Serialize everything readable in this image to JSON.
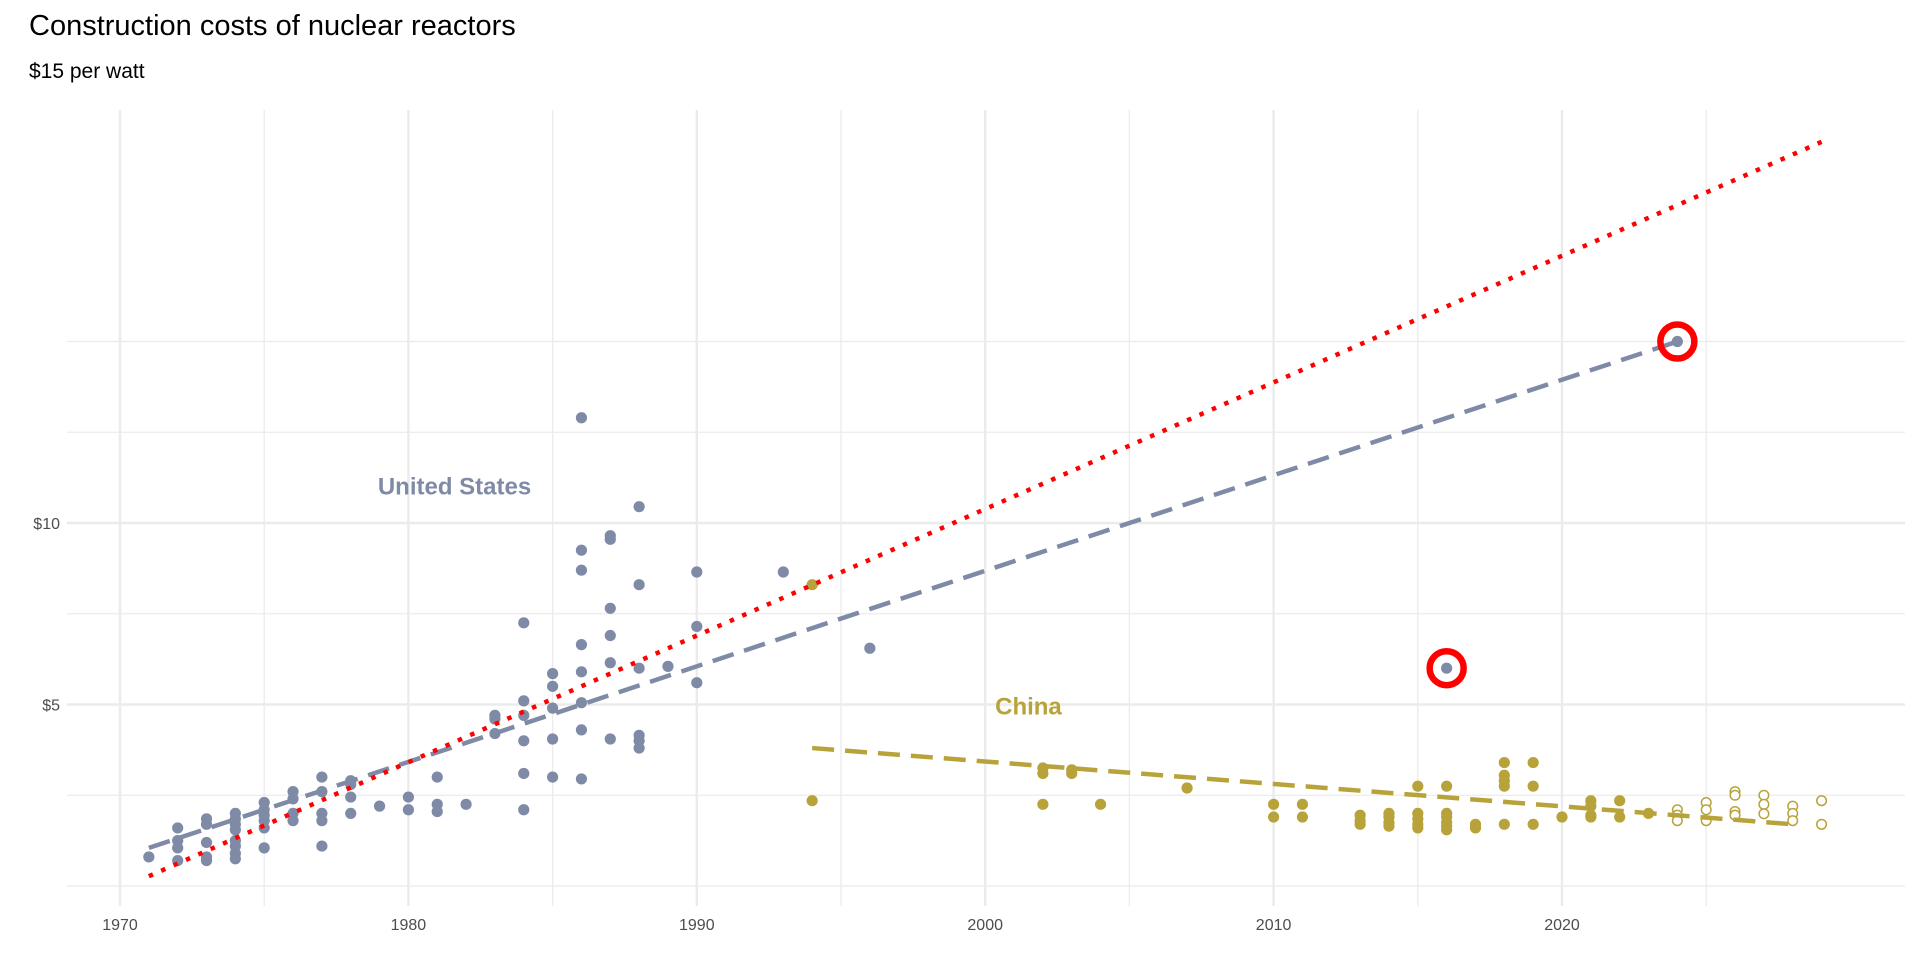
{
  "chart_data": {
    "type": "scatter",
    "title": "Construction costs of nuclear reactors",
    "subtitle": "$15 per watt",
    "xlabel": "",
    "ylabel": "",
    "xlim": [
      1968.2,
      2031.7
    ],
    "ylim": [
      -0.6,
      21.4
    ],
    "x_ticks": [
      1970,
      1980,
      1990,
      2000,
      2010,
      2020
    ],
    "x_tick_labels": [
      "1970",
      "1980",
      "1990",
      "2000",
      "2010",
      "2020"
    ],
    "y_ticks": [
      5,
      10
    ],
    "y_tick_labels": [
      "$5",
      "$10"
    ],
    "grid": true,
    "colors": {
      "us": "#7f8ba6",
      "china": "#b8a33a",
      "highlight": "#ff0000",
      "grid": "#ebebeb",
      "axis_text": "#4d4d4d"
    },
    "series": [
      {
        "name": "United States",
        "label_position": [
          1981.6,
          11.0
        ],
        "points": [
          [
            1971,
            0.8
          ],
          [
            1972,
            1.6
          ],
          [
            1972,
            1.25
          ],
          [
            1972,
            1.05
          ],
          [
            1972,
            0.7
          ],
          [
            1973,
            1.85
          ],
          [
            1973,
            1.7
          ],
          [
            1973,
            1.2
          ],
          [
            1973,
            0.8
          ],
          [
            1973,
            0.7
          ],
          [
            1974,
            2.0
          ],
          [
            1974,
            1.85
          ],
          [
            1974,
            1.7
          ],
          [
            1974,
            1.55
          ],
          [
            1974,
            1.25
          ],
          [
            1974,
            1.1
          ],
          [
            1974,
            0.9
          ],
          [
            1974,
            0.75
          ],
          [
            1975,
            2.3
          ],
          [
            1975,
            2.1
          ],
          [
            1975,
            1.95
          ],
          [
            1975,
            1.8
          ],
          [
            1975,
            1.6
          ],
          [
            1975,
            1.05
          ],
          [
            1976,
            2.6
          ],
          [
            1976,
            2.4
          ],
          [
            1976,
            2.0
          ],
          [
            1976,
            1.8
          ],
          [
            1977,
            3.0
          ],
          [
            1977,
            2.6
          ],
          [
            1977,
            2.0
          ],
          [
            1977,
            1.8
          ],
          [
            1977,
            1.1
          ],
          [
            1978,
            2.9
          ],
          [
            1978,
            2.8
          ],
          [
            1978,
            2.45
          ],
          [
            1978,
            2.0
          ],
          [
            1979,
            2.2
          ],
          [
            1980,
            2.45
          ],
          [
            1980,
            2.1
          ],
          [
            1981,
            3.0
          ],
          [
            1981,
            2.25
          ],
          [
            1981,
            2.05
          ],
          [
            1982,
            2.25
          ],
          [
            1983,
            4.7
          ],
          [
            1983,
            4.6
          ],
          [
            1983,
            4.2
          ],
          [
            1984,
            7.25
          ],
          [
            1984,
            5.1
          ],
          [
            1984,
            4.7
          ],
          [
            1984,
            4.0
          ],
          [
            1984,
            3.1
          ],
          [
            1984,
            2.1
          ],
          [
            1985,
            5.85
          ],
          [
            1985,
            5.5
          ],
          [
            1985,
            4.9
          ],
          [
            1985,
            4.05
          ],
          [
            1985,
            3.0
          ],
          [
            1986,
            12.9
          ],
          [
            1986,
            9.25
          ],
          [
            1986,
            8.7
          ],
          [
            1986,
            6.65
          ],
          [
            1986,
            5.9
          ],
          [
            1986,
            5.05
          ],
          [
            1986,
            4.3
          ],
          [
            1986,
            2.95
          ],
          [
            1987,
            9.65
          ],
          [
            1987,
            9.55
          ],
          [
            1987,
            7.65
          ],
          [
            1987,
            6.9
          ],
          [
            1987,
            6.15
          ],
          [
            1987,
            4.05
          ],
          [
            1988,
            10.45
          ],
          [
            1988,
            8.3
          ],
          [
            1988,
            6.0
          ],
          [
            1988,
            4.15
          ],
          [
            1988,
            4.0
          ],
          [
            1988,
            3.8
          ],
          [
            1989,
            6.05
          ],
          [
            1990,
            8.65
          ],
          [
            1990,
            7.15
          ],
          [
            1990,
            5.6
          ],
          [
            1993,
            8.65
          ],
          [
            1996,
            6.55
          ]
        ],
        "highlighted": [
          [
            2016,
            6.0
          ],
          [
            2024,
            15.0
          ]
        ],
        "trend": {
          "style": "dashed",
          "from": [
            1971,
            1.05
          ],
          "to": [
            2024,
            15.0
          ]
        }
      },
      {
        "name": "China",
        "label_position": [
          2001.5,
          4.95
        ],
        "points": [
          [
            1994,
            8.3
          ],
          [
            1994,
            2.35
          ],
          [
            2002,
            3.25
          ],
          [
            2002,
            3.1
          ],
          [
            2002,
            2.25
          ],
          [
            2003,
            3.2
          ],
          [
            2003,
            3.1
          ],
          [
            2004,
            2.25
          ],
          [
            2007,
            2.7
          ],
          [
            2010,
            2.25
          ],
          [
            2010,
            1.9
          ],
          [
            2011,
            2.25
          ],
          [
            2011,
            1.9
          ],
          [
            2013,
            1.95
          ],
          [
            2013,
            1.8
          ],
          [
            2013,
            1.7
          ],
          [
            2014,
            2.0
          ],
          [
            2014,
            1.9
          ],
          [
            2014,
            1.75
          ],
          [
            2014,
            1.65
          ],
          [
            2015,
            2.75
          ],
          [
            2015,
            2.0
          ],
          [
            2015,
            1.85
          ],
          [
            2015,
            1.7
          ],
          [
            2015,
            1.6
          ],
          [
            2016,
            2.75
          ],
          [
            2016,
            2.0
          ],
          [
            2016,
            1.9
          ],
          [
            2016,
            1.75
          ],
          [
            2016,
            1.65
          ],
          [
            2016,
            1.55
          ],
          [
            2017,
            1.7
          ],
          [
            2017,
            1.6
          ],
          [
            2018,
            3.4
          ],
          [
            2018,
            3.05
          ],
          [
            2018,
            2.9
          ],
          [
            2018,
            2.75
          ],
          [
            2018,
            1.7
          ],
          [
            2019,
            3.4
          ],
          [
            2019,
            2.75
          ],
          [
            2019,
            1.7
          ],
          [
            2020,
            1.9
          ],
          [
            2021,
            2.35
          ],
          [
            2021,
            2.2
          ],
          [
            2021,
            1.95
          ],
          [
            2021,
            1.9
          ],
          [
            2022,
            2.35
          ],
          [
            2022,
            1.9
          ],
          [
            2023,
            2.0
          ]
        ],
        "planned_points": [
          [
            2024,
            2.1
          ],
          [
            2024,
            1.95
          ],
          [
            2024,
            1.8
          ],
          [
            2025,
            2.3
          ],
          [
            2025,
            2.1
          ],
          [
            2025,
            1.8
          ],
          [
            2026,
            2.6
          ],
          [
            2026,
            2.5
          ],
          [
            2026,
            2.05
          ],
          [
            2026,
            1.95
          ],
          [
            2027,
            2.5
          ],
          [
            2027,
            2.25
          ],
          [
            2027,
            1.99
          ],
          [
            2028,
            2.2
          ],
          [
            2028,
            2.0
          ],
          [
            2028,
            1.8
          ],
          [
            2029,
            2.35
          ],
          [
            2029,
            1.7
          ]
        ],
        "trend": {
          "style": "dashed",
          "from": [
            1994,
            3.8
          ],
          "to": [
            2028,
            1.7
          ]
        }
      }
    ],
    "reference_line": {
      "style": "dotted",
      "color": "#ff0000",
      "from": [
        1971,
        0.27
      ],
      "to": [
        2029,
        20.5
      ]
    }
  }
}
